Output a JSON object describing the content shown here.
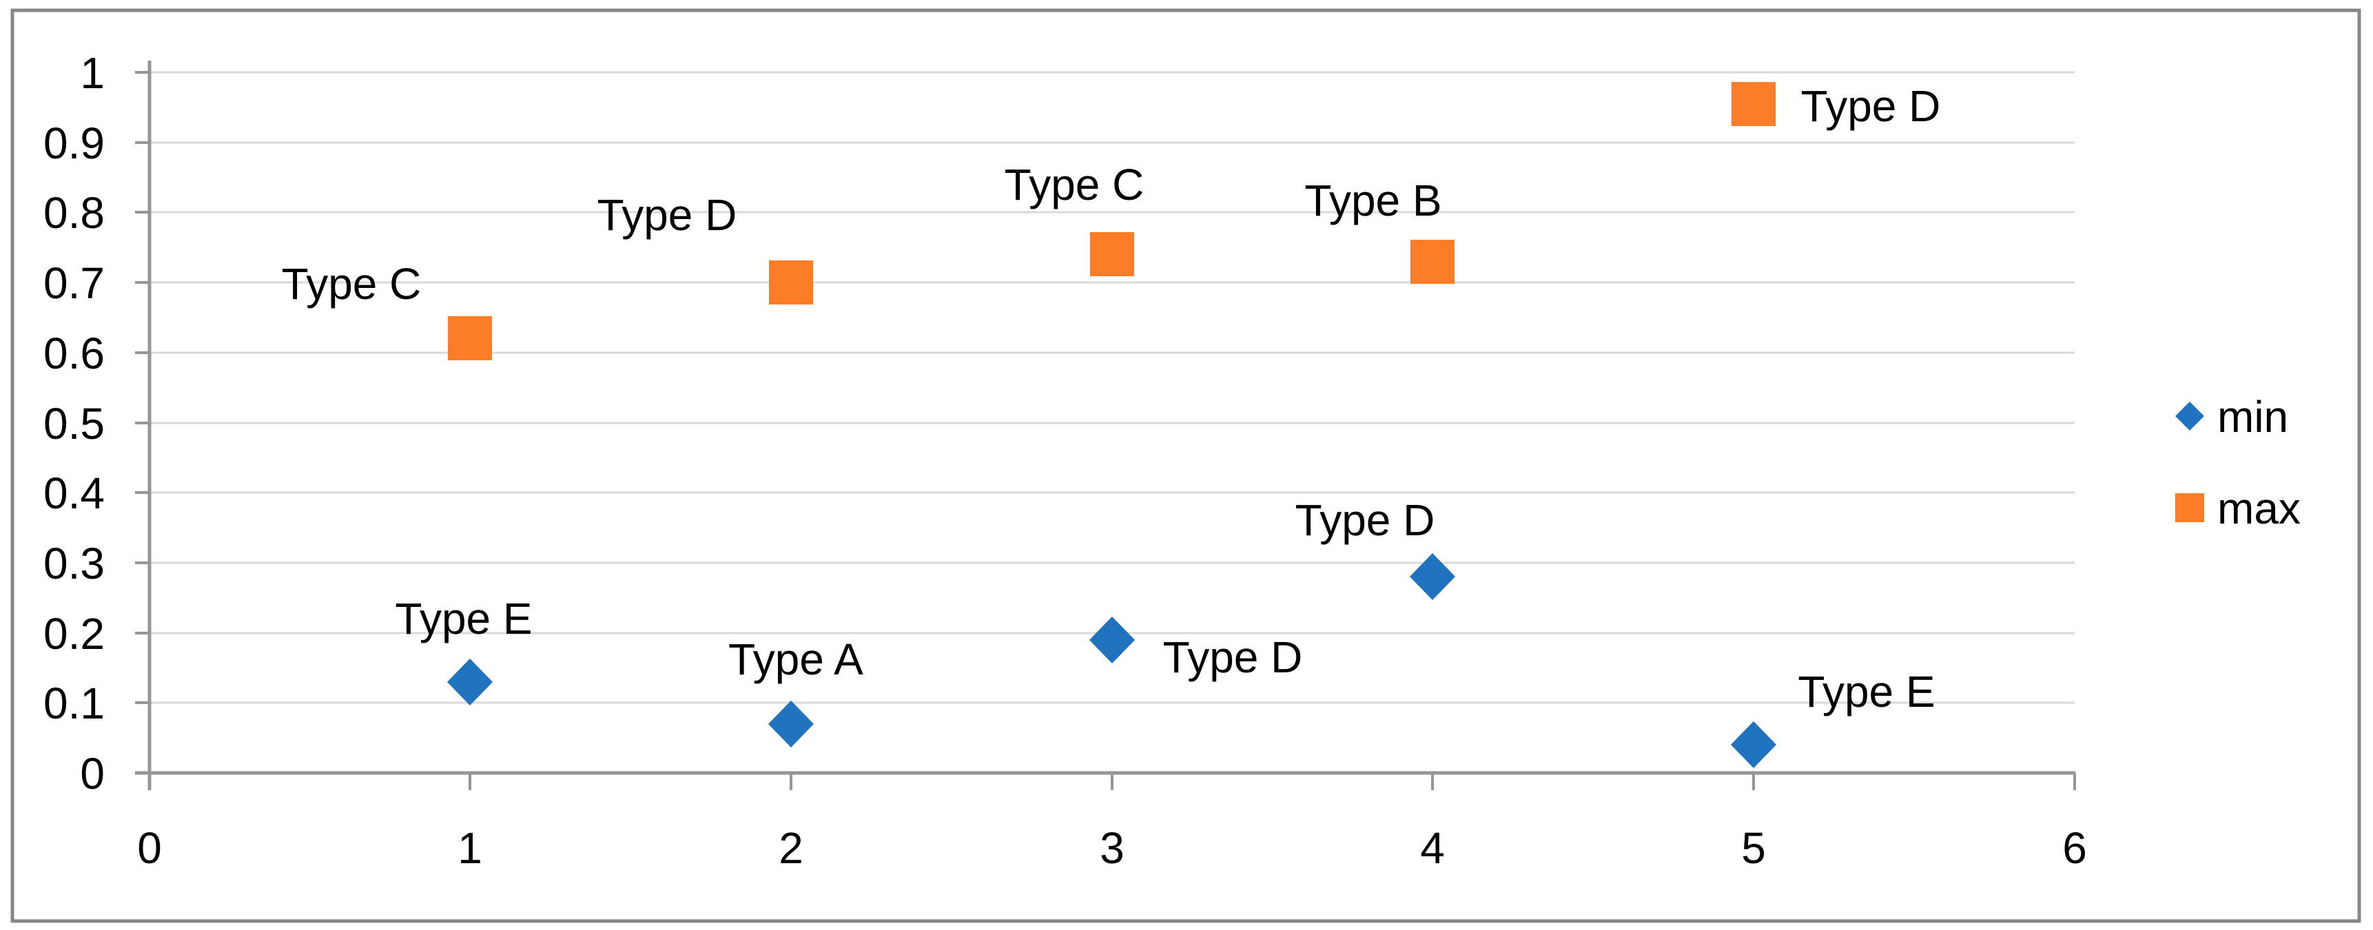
{
  "chart_data": {
    "type": "scatter",
    "title": "",
    "x_axis": {
      "label": "",
      "min": 0,
      "max": 6,
      "tick_step": 1,
      "ticks": [
        "0",
        "1",
        "2",
        "3",
        "4",
        "5",
        "6"
      ]
    },
    "y_axis": {
      "label": "",
      "min": 0,
      "max": 1,
      "tick_step": 0.1,
      "ticks": [
        "0",
        "0.1",
        "0.2",
        "0.3",
        "0.4",
        "0.5",
        "0.6",
        "0.7",
        "0.8",
        "0.9",
        "1"
      ]
    },
    "gridlines": "horizontal",
    "legend": {
      "position": "middle-right",
      "entries": [
        "min",
        "max"
      ]
    },
    "series": [
      {
        "name": "min",
        "marker": "diamond",
        "color": "#1F73BF",
        "points": [
          {
            "x": 1,
            "y": 0.13,
            "label": "Type E",
            "label_offset": [
              -9,
              -93
            ]
          },
          {
            "x": 2,
            "y": 0.07,
            "label": "Type A",
            "label_offset": [
              7,
              -95
            ]
          },
          {
            "x": 3,
            "y": 0.19,
            "label": "Type D",
            "label_offset": [
              175,
              24
            ]
          },
          {
            "x": 4,
            "y": 0.28,
            "label": "Type D",
            "label_offset": [
              -98,
              -83
            ]
          },
          {
            "x": 5,
            "y": 0.04,
            "label": "Type E",
            "label_offset": [
              164,
              -78
            ]
          }
        ]
      },
      {
        "name": "max",
        "marker": "square",
        "color": "#FB7D28",
        "points": [
          {
            "x": 1,
            "y": 0.62,
            "label": "Type C",
            "label_offset": [
              -172,
              -80
            ]
          },
          {
            "x": 2,
            "y": 0.7,
            "label": "Type D",
            "label_offset": [
              -180,
              -99
            ]
          },
          {
            "x": 3,
            "y": 0.74,
            "label": "Type C",
            "label_offset": [
              -55,
              -102
            ]
          },
          {
            "x": 4,
            "y": 0.73,
            "label": "Type B",
            "label_offset": [
              -86,
              -90
            ]
          },
          {
            "x": 5,
            "y": 0.955,
            "label": "Type D",
            "label_offset": [
              170,
              2
            ]
          }
        ]
      }
    ]
  },
  "colors": {
    "background": "#FFFFFF",
    "gridline": "#D9D9D9",
    "axis": "#969696",
    "tick": "#969696",
    "border": "#878787",
    "text": "#000000"
  }
}
